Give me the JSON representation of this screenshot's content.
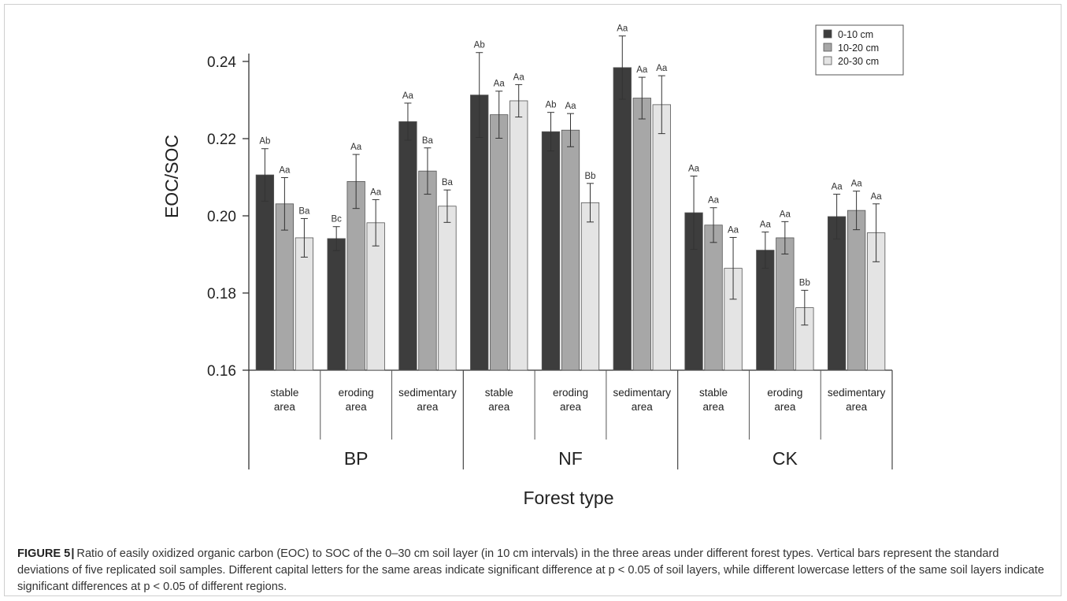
{
  "chart_data": {
    "type": "bar",
    "ylabel": "EOC/SOC",
    "xlabel": "Forest type",
    "ylim": [
      0.16,
      0.245
    ],
    "yticks": [
      0.16,
      0.18,
      0.2,
      0.22,
      0.24
    ],
    "ytick_labels": [
      "0.16",
      "0.18",
      "0.20",
      "0.22",
      "0.24"
    ],
    "legend_position": "top-right",
    "series": [
      {
        "name": "0-10 cm",
        "color": "#3d3d3d"
      },
      {
        "name": "10-20 cm",
        "color": "#a7a7a7"
      },
      {
        "name": "20-30 cm",
        "color": "#e4e4e4"
      }
    ],
    "groups": [
      {
        "forest_type": "BP",
        "areas": [
          {
            "label_line1": "stable",
            "label_line2": "area",
            "values": [
              0.2106,
              0.2031,
              0.1943
            ],
            "errors": [
              0.0068,
              0.0068,
              0.005
            ],
            "letters": [
              "Ab",
              "Aa",
              "Ba"
            ]
          },
          {
            "label_line1": "eroding",
            "label_line2": "area",
            "values": [
              0.1941,
              0.2089,
              0.1982
            ],
            "errors": [
              0.0031,
              0.007,
              0.006
            ],
            "letters": [
              "Bc",
              "Aa",
              "Aa"
            ]
          },
          {
            "label_line1": "sedimentary",
            "label_line2": "area",
            "values": [
              0.2244,
              0.2116,
              0.2025
            ],
            "errors": [
              0.0048,
              0.006,
              0.0042
            ],
            "letters": [
              "Aa",
              "Ba",
              "Ba"
            ]
          }
        ]
      },
      {
        "forest_type": "NF",
        "areas": [
          {
            "label_line1": "stable",
            "label_line2": "area",
            "values": [
              0.2313,
              0.2262,
              0.2298
            ],
            "errors": [
              0.011,
              0.0061,
              0.0042
            ],
            "letters": [
              "Ab",
              "Aa",
              "Aa"
            ]
          },
          {
            "label_line1": "eroding",
            "label_line2": "area",
            "values": [
              0.2218,
              0.2222,
              0.2034
            ],
            "errors": [
              0.005,
              0.0043,
              0.005
            ],
            "letters": [
              "Ab",
              "Aa",
              "Bb"
            ]
          },
          {
            "label_line1": "sedimentary",
            "label_line2": "area",
            "values": [
              0.2384,
              0.2305,
              0.2288
            ],
            "errors": [
              0.0082,
              0.0054,
              0.0075
            ],
            "letters": [
              "Aa",
              "Aa",
              "Aa"
            ]
          }
        ]
      },
      {
        "forest_type": "CK",
        "areas": [
          {
            "label_line1": "stable",
            "label_line2": "area",
            "values": [
              0.2008,
              0.1976,
              0.1864
            ],
            "errors": [
              0.0095,
              0.0045,
              0.008
            ],
            "letters": [
              "Aa",
              "Aa",
              "Aa"
            ]
          },
          {
            "label_line1": "eroding",
            "label_line2": "area",
            "values": [
              0.1911,
              0.1943,
              0.1762
            ],
            "errors": [
              0.0047,
              0.0042,
              0.0045
            ],
            "letters": [
              "Aa",
              "Aa",
              "Bb"
            ]
          },
          {
            "label_line1": "sedimentary",
            "label_line2": "area",
            "values": [
              0.1998,
              0.2014,
              0.1956
            ],
            "errors": [
              0.0058,
              0.005,
              0.0075
            ],
            "letters": [
              "Aa",
              "Aa",
              "Aa"
            ]
          }
        ]
      }
    ]
  },
  "caption": {
    "label": "FIGURE 5",
    "separator": "|",
    "text": "Ratio of easily oxidized organic carbon (EOC) to SOC of the 0–30 cm soil layer (in 10 cm intervals) in the three areas under different forest types. Vertical bars represent the standard deviations of five replicated soil samples. Different capital letters for the same areas indicate significant difference at p < 0.05 of soil layers, while different lowercase letters of the same soil layers indicate significant differences at p < 0.05 of different regions."
  }
}
